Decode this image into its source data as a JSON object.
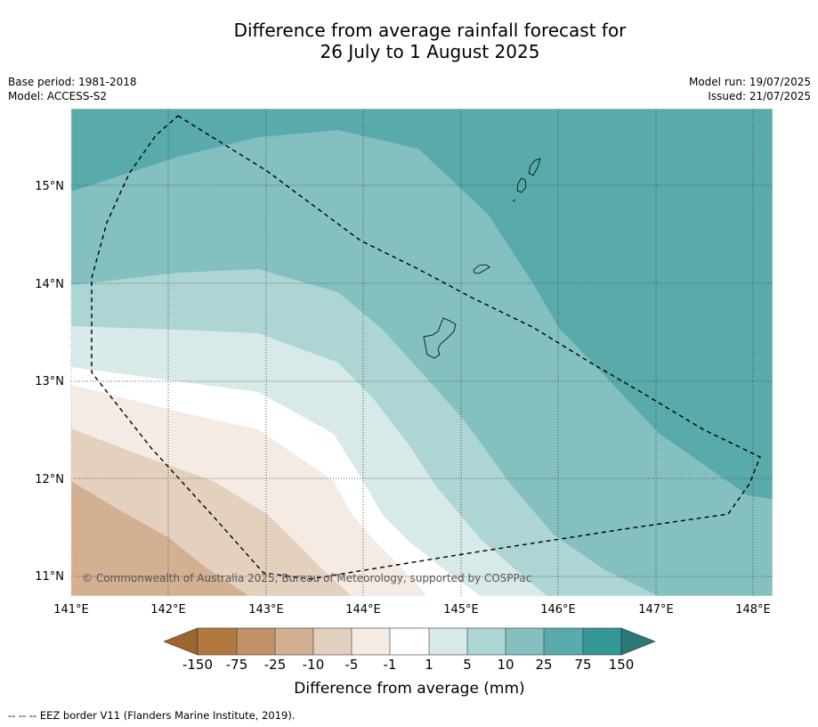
{
  "header": {
    "title_line1": "Difference from average rainfall forecast for",
    "title_line2": "26 July to 1 August 2025",
    "base_period": "Base period: 1981-2018",
    "model": "Model: ACCESS-S2",
    "model_run": "Model run: 19/07/2025",
    "issued": "Issued: 21/07/2025"
  },
  "map": {
    "lon_range": [
      141.0,
      148.2
    ],
    "lat_range": [
      10.8,
      15.8
    ],
    "lon_ticks": [
      "141°E",
      "142°E",
      "143°E",
      "144°E",
      "145°E",
      "146°E",
      "147°E",
      "148°E"
    ],
    "lat_ticks": [
      "11°N",
      "12°N",
      "13°N",
      "14°N",
      "15°N"
    ],
    "copyright": "© Commonwealth of Australia 2025, Bureau of Meteorology, supported by COSPPac",
    "grid": true,
    "boundary_style": "dashed",
    "colors": {
      "lt_-150": "#9f6530",
      "-150_-75": "#b17940",
      "-75_-25": "#c19268",
      "-25_-10": "#d4b092",
      "-10_-5": "#e4d0bf",
      "-5_-1": "#f4ebe5",
      "-1_1": "#ffffff",
      "1_5": "#d7e9e8",
      "5_10": "#acd5d4",
      "10_25": "#83c0bf",
      "25_75": "#59abab",
      "75_150": "#349797",
      "gt_150": "#2a7878"
    }
  },
  "colorbar": {
    "labels": [
      "-150",
      "-75",
      "-25",
      "-10",
      "-5",
      "-1",
      "1",
      "5",
      "10",
      "25",
      "75",
      "150"
    ],
    "title": "Difference from average (mm)"
  },
  "footnote": "--  --  -- EEZ border V11 (Flanders Marine Institute, 2019)."
}
